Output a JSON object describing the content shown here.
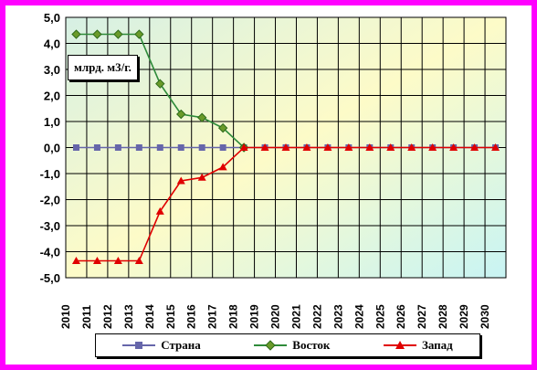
{
  "chart_data": {
    "type": "line",
    "title": "",
    "xlabel": "",
    "ylabel": "",
    "unit_label": "млрд. м3/г.",
    "ylim": [
      -5.0,
      5.0
    ],
    "y_ticks": [
      "5,0",
      "4,0",
      "3,0",
      "2,0",
      "1,0",
      "0,0",
      "-1,0",
      "-2,0",
      "-3,0",
      "-4,0",
      "-5,0"
    ],
    "categories": [
      "2010",
      "2011",
      "2012",
      "2013",
      "2014",
      "2015",
      "2016",
      "2017",
      "2018",
      "2019",
      "2020",
      "2021",
      "2022",
      "2023",
      "2024",
      "2025",
      "2026",
      "2027",
      "2028",
      "2029",
      "2030"
    ],
    "grid": true,
    "legend_position": "bottom",
    "series": [
      {
        "name": "Страна",
        "color": "#6666aa",
        "marker": "square",
        "values": [
          0,
          0,
          0,
          0,
          0,
          0,
          0,
          0,
          0,
          0,
          0,
          0,
          0,
          0,
          0,
          0,
          0,
          0,
          0,
          0,
          0
        ]
      },
      {
        "name": "Восток",
        "color": "#2e8b3a",
        "marker": "diamond",
        "values": [
          4.35,
          4.35,
          4.35,
          4.35,
          2.45,
          1.28,
          1.15,
          0.75,
          0,
          null,
          null,
          null,
          null,
          null,
          null,
          null,
          null,
          null,
          null,
          null,
          null
        ]
      },
      {
        "name": "Запад",
        "color": "#e00000",
        "marker": "triangle",
        "values": [
          -4.35,
          -4.35,
          -4.35,
          -4.35,
          -2.45,
          -1.28,
          -1.15,
          -0.75,
          0,
          0,
          0,
          0,
          0,
          0,
          0,
          0,
          0,
          0,
          0,
          0,
          0
        ]
      }
    ]
  }
}
